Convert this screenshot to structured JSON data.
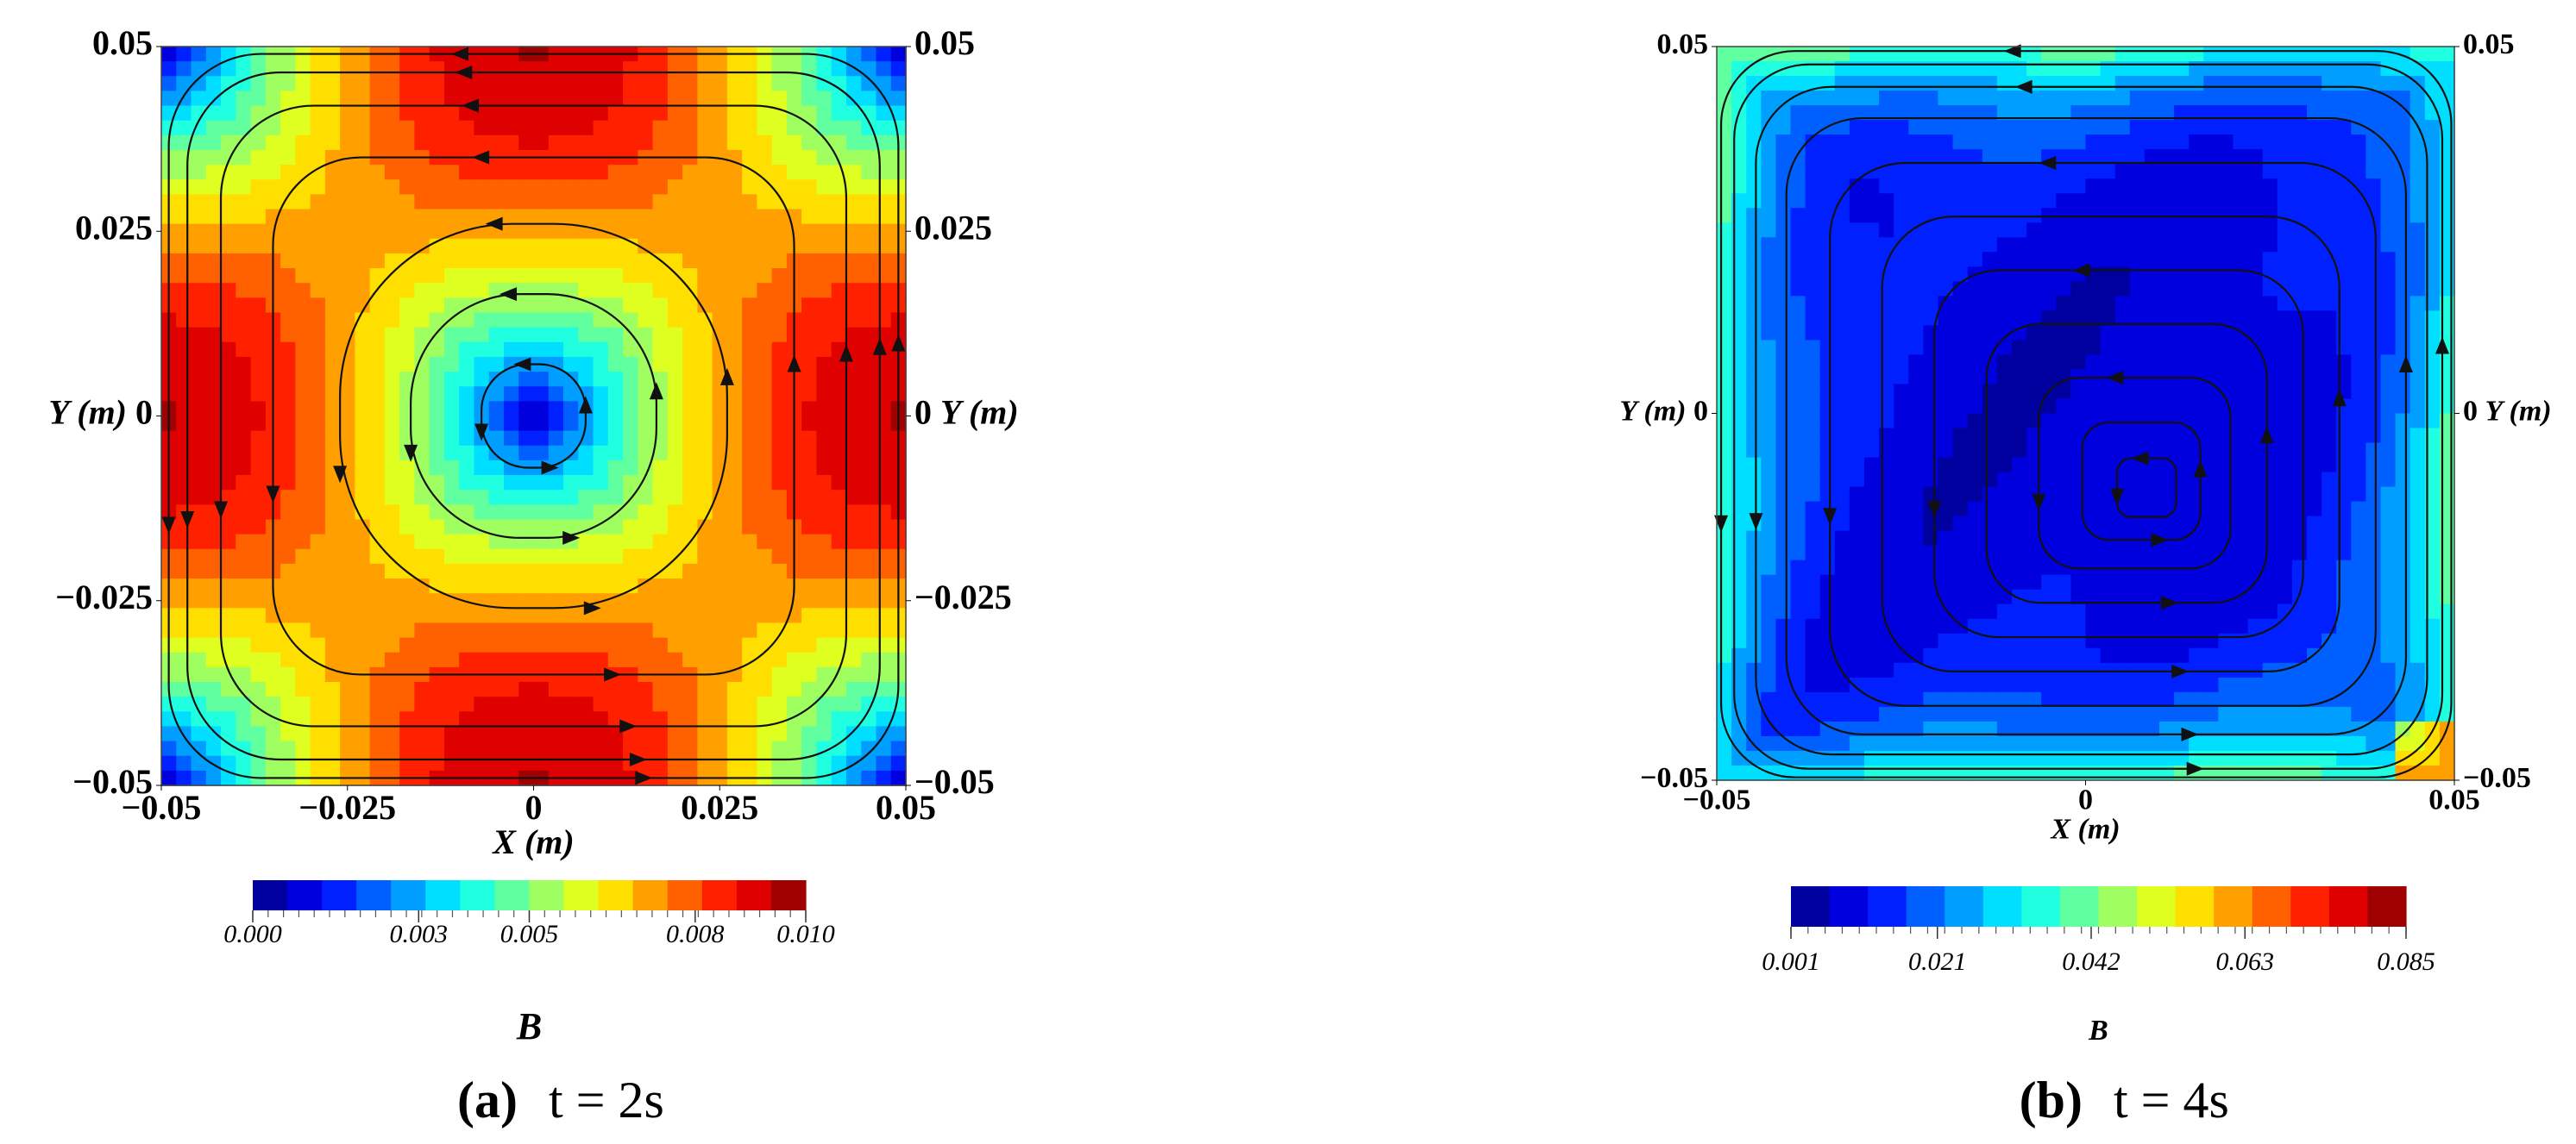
{
  "chart_data": [
    {
      "type": "contour",
      "xlabel": "X (m)",
      "ylabel": "Y (m)",
      "xlim": [
        -0.05,
        0.05
      ],
      "ylim": [
        -0.05,
        0.05
      ],
      "xticks": [
        {
          "value": -0.05,
          "label": "−0.05"
        },
        {
          "value": -0.025,
          "label": "−0.025"
        },
        0,
        0.025,
        0.05
      ],
      "yticks": [
        {
          "value": -0.05,
          "label": "−0.05"
        },
        {
          "value": -0.025,
          "label": "−0.025"
        },
        0,
        0.025,
        0.05
      ],
      "colorbar_label": "B",
      "clim": [
        0,
        0.01
      ],
      "cticks": [
        {
          "value": 0,
          "label": "0.000"
        },
        0.003,
        0.005,
        0.008,
        {
          "value": 0.01,
          "label": "0.010"
        }
      ],
      "panel": "(a)",
      "caption": "t = 2s"
    },
    {
      "type": "contour",
      "xlabel": "X (m)",
      "ylabel": "Y (m)",
      "xlim": [
        -0.05,
        0.05
      ],
      "ylim": [
        -0.05,
        0.05
      ],
      "xticks": [
        {
          "value": -0.05,
          "label": "−0.05"
        },
        0,
        0.05
      ],
      "yticks": [
        {
          "value": -0.05,
          "label": "−0.05"
        },
        0,
        0.05
      ],
      "colorbar_label": "B",
      "clim": [
        0.001,
        0.085
      ],
      "cticks": [
        0.001,
        0.021,
        0.042,
        0.063,
        0.085
      ],
      "panel": "(b)",
      "caption": "t = 4s"
    }
  ]
}
